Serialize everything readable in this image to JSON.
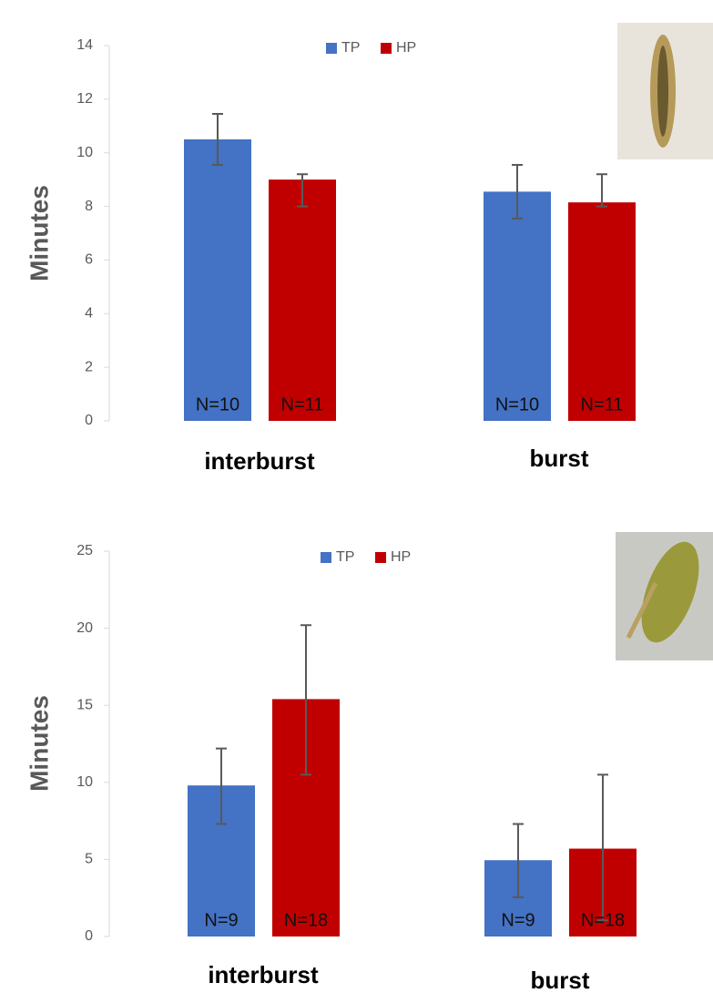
{
  "chart_data": [
    {
      "type": "bar",
      "y_label": "Minutes",
      "categories": [
        "interburst",
        "burst"
      ],
      "ylim": [
        0,
        14
      ],
      "yticks": [
        0,
        2,
        4,
        6,
        8,
        10,
        12,
        14
      ],
      "series": [
        {
          "name": "TP",
          "color": "#4472c4",
          "values": [
            10.5,
            8.55
          ],
          "error_minus": [
            0.95,
            1.0
          ],
          "error_plus": [
            0.95,
            1.0
          ],
          "annotations": [
            "N=10",
            "N=10"
          ]
        },
        {
          "name": "HP",
          "color": "#c00000",
          "values": [
            9.0,
            8.15
          ],
          "error_minus": [
            1.0,
            0.15
          ],
          "error_plus": [
            0.2,
            1.05
          ],
          "annotations": [
            "N=11",
            "N=11"
          ]
        }
      ]
    },
    {
      "type": "bar",
      "y_label": "Minutes",
      "categories": [
        "interburst",
        "burst"
      ],
      "ylim": [
        0,
        25
      ],
      "yticks": [
        0,
        5,
        10,
        15,
        20,
        25
      ],
      "series": [
        {
          "name": "TP",
          "color": "#4472c4",
          "values": [
            9.8,
            4.95
          ],
          "error_minus": [
            2.5,
            2.4
          ],
          "error_plus": [
            2.4,
            2.35
          ],
          "annotations": [
            "N=9",
            "N=9"
          ]
        },
        {
          "name": "HP",
          "color": "#c00000",
          "values": [
            15.4,
            5.7
          ],
          "error_minus": [
            4.9,
            4.65
          ],
          "error_plus": [
            4.8,
            4.8
          ],
          "annotations": [
            "N=18",
            "N=18"
          ]
        }
      ]
    }
  ]
}
